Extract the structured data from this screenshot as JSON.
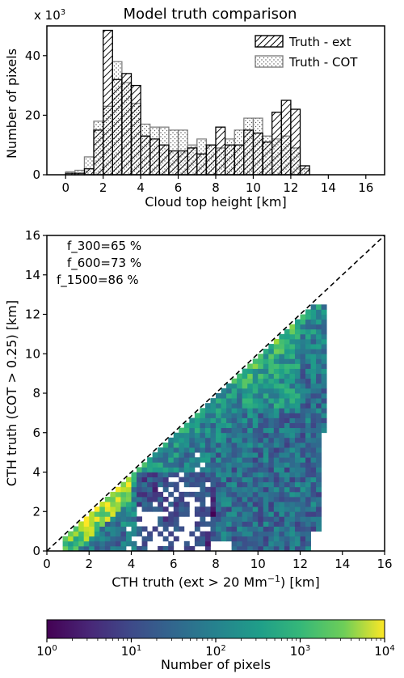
{
  "chart_data": [
    {
      "type": "bar",
      "title": "Model truth comparison",
      "xlabel": "Cloud top height [km]",
      "ylabel": "Number of pixels",
      "multiplier_label": "x 10",
      "multiplier_exp": "3",
      "xlim": [
        -1,
        17
      ],
      "ylim": [
        0,
        50
      ],
      "x_ticks": [
        "0",
        "2",
        "4",
        "6",
        "8",
        "10",
        "12",
        "14",
        "16"
      ],
      "y_ticks": [
        "0",
        "20",
        "40"
      ],
      "bin_width_km": 0.5,
      "legend_position": "top-right",
      "series": [
        {
          "name": "Truth - ext",
          "hatch": "diagonal",
          "bins": [
            {
              "x0": 0.0,
              "value": 0.5
            },
            {
              "x0": 0.5,
              "value": 0.5
            },
            {
              "x0": 1.0,
              "value": 2
            },
            {
              "x0": 1.5,
              "value": 15
            },
            {
              "x0": 2.0,
              "value": 48.5
            },
            {
              "x0": 2.5,
              "value": 32
            },
            {
              "x0": 3.0,
              "value": 34
            },
            {
              "x0": 3.5,
              "value": 30
            },
            {
              "x0": 4.0,
              "value": 13
            },
            {
              "x0": 4.5,
              "value": 12
            },
            {
              "x0": 5.0,
              "value": 10
            },
            {
              "x0": 5.5,
              "value": 8
            },
            {
              "x0": 6.0,
              "value": 8
            },
            {
              "x0": 6.5,
              "value": 9
            },
            {
              "x0": 7.0,
              "value": 7
            },
            {
              "x0": 7.5,
              "value": 10
            },
            {
              "x0": 8.0,
              "value": 16
            },
            {
              "x0": 8.5,
              "value": 10
            },
            {
              "x0": 9.0,
              "value": 10
            },
            {
              "x0": 9.5,
              "value": 15
            },
            {
              "x0": 10.0,
              "value": 14
            },
            {
              "x0": 10.5,
              "value": 11
            },
            {
              "x0": 11.0,
              "value": 21
            },
            {
              "x0": 11.5,
              "value": 25
            },
            {
              "x0": 12.0,
              "value": 22
            },
            {
              "x0": 12.5,
              "value": 3
            }
          ]
        },
        {
          "name": "Truth - COT",
          "hatch": "dots",
          "bins": [
            {
              "x0": 0.0,
              "value": 1
            },
            {
              "x0": 0.5,
              "value": 1.5
            },
            {
              "x0": 1.0,
              "value": 6
            },
            {
              "x0": 1.5,
              "value": 18
            },
            {
              "x0": 2.0,
              "value": 23
            },
            {
              "x0": 2.5,
              "value": 38
            },
            {
              "x0": 3.0,
              "value": 31
            },
            {
              "x0": 3.5,
              "value": 24
            },
            {
              "x0": 4.0,
              "value": 17
            },
            {
              "x0": 4.5,
              "value": 16
            },
            {
              "x0": 5.0,
              "value": 16
            },
            {
              "x0": 5.5,
              "value": 15
            },
            {
              "x0": 6.0,
              "value": 15
            },
            {
              "x0": 6.5,
              "value": 10
            },
            {
              "x0": 7.0,
              "value": 12
            },
            {
              "x0": 7.5,
              "value": 10
            },
            {
              "x0": 8.0,
              "value": 9
            },
            {
              "x0": 8.5,
              "value": 12
            },
            {
              "x0": 9.0,
              "value": 15
            },
            {
              "x0": 9.5,
              "value": 19
            },
            {
              "x0": 10.0,
              "value": 19
            },
            {
              "x0": 10.5,
              "value": 13
            },
            {
              "x0": 11.0,
              "value": 12
            },
            {
              "x0": 11.5,
              "value": 13
            },
            {
              "x0": 12.0,
              "value": 9
            },
            {
              "x0": 12.5,
              "value": 2
            }
          ]
        }
      ]
    },
    {
      "type": "heatmap",
      "xlabel_prefix": "CTH truth (ext > 20 Mm",
      "xlabel_exp": "−1",
      "xlabel_suffix": ") [km]",
      "ylabel": "CTH truth (COT > 0.25) [km]",
      "xlim": [
        0,
        16
      ],
      "ylim": [
        0,
        16
      ],
      "x_ticks": [
        "0",
        "2",
        "4",
        "6",
        "8",
        "10",
        "12",
        "14",
        "16"
      ],
      "y_ticks": [
        "0",
        "2",
        "4",
        "6",
        "8",
        "10",
        "12",
        "14",
        "16"
      ],
      "bin_size_km": 0.25,
      "one_to_one_line": true,
      "annotations": [
        "f_300=65 %",
        "f_600=73 %",
        "f_1500=86 %"
      ],
      "note": "cells are 0.25 km bins with counts spanning 1 to 10^4 (log scale); the main population lies below the 1:1 line for x in 1–13 km, densest along the diagonal near x≈2.5 km",
      "colorbar": {
        "label": "Number of pixels",
        "scale": "log",
        "range": [
          1,
          10000
        ],
        "ticks": [
          {
            "base": "10",
            "exp": "0"
          },
          {
            "base": "10",
            "exp": "1"
          },
          {
            "base": "10",
            "exp": "2"
          },
          {
            "base": "10",
            "exp": "3"
          },
          {
            "base": "10",
            "exp": "4"
          }
        ],
        "colormap": "viridis"
      }
    }
  ],
  "colors": {
    "ext_edge": "#000000",
    "cot_edge": "#808080",
    "dashed_line": "#000000"
  }
}
